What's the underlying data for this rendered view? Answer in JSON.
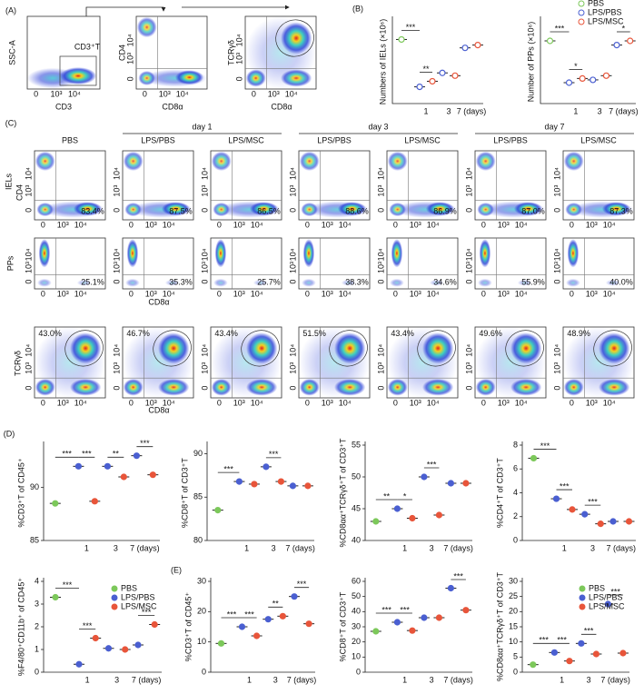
{
  "flow": {
    "panel_a": "(A)",
    "panel_c": "(C)",
    "ssc": "SSC-A",
    "cd3": "CD3",
    "gate": "CD3⁺T",
    "cd4": "CD4",
    "cd8": "CD8α",
    "tcr": "TCRγδ",
    "ticks": [
      "0",
      "10³",
      "10⁴"
    ],
    "days": [
      "day 1",
      "day 3",
      "day 7"
    ],
    "groups": [
      "PBS",
      "LPS/PBS",
      "LPS/MSC",
      "LPS/PBS",
      "LPS/MSC",
      "LPS/PBS",
      "LPS/MSC"
    ],
    "rows": [
      "IELs",
      "PPs"
    ],
    "iel_pct": [
      "83.4%",
      "87.5%",
      "86.5%",
      "88.6%",
      "86.9%",
      "87.0%",
      "87.3%"
    ],
    "pp_pct": [
      "25.1%",
      "35.3%",
      "25.7%",
      "38.3%",
      "34.6%",
      "55.9%",
      "40.0%"
    ],
    "tcr_pct": [
      "43.0%",
      "46.7%",
      "43.4%",
      "51.5%",
      "43.4%",
      "49.6%",
      "48.9%"
    ]
  },
  "chart_data": [
    {
      "type": "dot",
      "panel": "(B)",
      "ylabel": "Numbers of IELs (×10⁶)",
      "marker": "open",
      "categories": [
        null,
        "1",
        "3",
        "7 (days)"
      ],
      "ylim": [
        0,
        15
      ],
      "series": [
        {
          "name": "PBS",
          "color": "#7cc85a",
          "values": [
            11.5,
            null,
            null,
            null
          ]
        },
        {
          "name": "LPS/PBS",
          "color": "#4a5fd1",
          "values": [
            null,
            3,
            5.5,
            10
          ]
        },
        {
          "name": "LPS/MSC",
          "color": "#e8553a",
          "values": [
            null,
            4,
            5,
            10.5
          ]
        }
      ],
      "annotations": [
        "***",
        "**"
      ]
    },
    {
      "type": "dot",
      "ylabel": "Number of PPs (×10⁶)",
      "marker": "open",
      "legend": "upper right",
      "categories": [
        null,
        "1",
        "3",
        "7 (days)"
      ],
      "ylim": [
        0,
        6
      ],
      "series": [
        {
          "name": "PBS",
          "color": "#7cc85a",
          "values": [
            4.5,
            null,
            null,
            null
          ]
        },
        {
          "name": "LPS/PBS",
          "color": "#4a5fd1",
          "values": [
            null,
            1.5,
            1.7,
            4.2
          ]
        },
        {
          "name": "LPS/MSC",
          "color": "#e8553a",
          "values": [
            null,
            1.8,
            2,
            4.5
          ]
        }
      ],
      "annotations": [
        "***",
        "*",
        "*"
      ]
    },
    {
      "type": "dot",
      "panel": "(D)",
      "ylabel": "%CD3⁺T of CD45⁺",
      "marker": "filled",
      "categories": [
        null,
        "1",
        "3",
        "7 (days)"
      ],
      "ylim": [
        85,
        94
      ],
      "yticks": [
        85,
        90
      ],
      "series": [
        {
          "name": "PBS",
          "color": "#7cc85a",
          "values": [
            88.5,
            null,
            null,
            null
          ]
        },
        {
          "name": "LPS/PBS",
          "color": "#4a5fd1",
          "values": [
            null,
            92,
            92,
            93
          ]
        },
        {
          "name": "LPS/MSC",
          "color": "#e8553a",
          "values": [
            null,
            88.7,
            91,
            91.2
          ]
        }
      ],
      "annotations": [
        "***",
        "***",
        "**",
        "***"
      ]
    },
    {
      "type": "dot",
      "ylabel": "%CD8⁺T of CD3⁺T",
      "marker": "filled",
      "categories": [
        null,
        "1",
        "3",
        "7 (days)"
      ],
      "ylim": [
        80,
        91
      ],
      "yticks": [
        80,
        85,
        90
      ],
      "series": [
        {
          "name": "PBS",
          "color": "#7cc85a",
          "values": [
            83.5,
            null,
            null,
            null
          ]
        },
        {
          "name": "LPS/PBS",
          "color": "#4a5fd1",
          "values": [
            null,
            86.8,
            88.5,
            86.3
          ]
        },
        {
          "name": "LPS/MSC",
          "color": "#e8553a",
          "values": [
            null,
            86.5,
            86.8,
            86.3
          ]
        }
      ],
      "annotations": [
        "***",
        "***"
      ]
    },
    {
      "type": "dot",
      "ylabel": "%CD8αα⁺TCRγδ⁺T of CD3⁺T",
      "marker": "filled",
      "categories": [
        null,
        "1",
        "3",
        "7 (days)"
      ],
      "ylim": [
        40,
        55
      ],
      "yticks": [
        40,
        45,
        50,
        55
      ],
      "series": [
        {
          "name": "PBS",
          "color": "#7cc85a",
          "values": [
            43,
            null,
            null,
            null
          ]
        },
        {
          "name": "LPS/PBS",
          "color": "#4a5fd1",
          "values": [
            null,
            45,
            50,
            49
          ]
        },
        {
          "name": "LPS/MSC",
          "color": "#e8553a",
          "values": [
            null,
            43.5,
            44,
            49
          ]
        }
      ],
      "annotations": [
        "**",
        "*",
        "***"
      ]
    },
    {
      "type": "dot",
      "ylabel": "%CD4⁺T of CD3⁺T",
      "marker": "filled",
      "categories": [
        null,
        "1",
        "3",
        "7 (days)"
      ],
      "ylim": [
        0,
        8
      ],
      "yticks": [
        0,
        2,
        4,
        6,
        8
      ],
      "series": [
        {
          "name": "PBS",
          "color": "#7cc85a",
          "values": [
            6.9,
            null,
            null,
            null
          ]
        },
        {
          "name": "LPS/PBS",
          "color": "#4a5fd1",
          "values": [
            null,
            3.5,
            2.2,
            1.6
          ]
        },
        {
          "name": "LPS/MSC",
          "color": "#e8553a",
          "values": [
            null,
            2.6,
            1.4,
            1.6
          ]
        }
      ],
      "annotations": [
        "***",
        "***",
        "***"
      ]
    },
    {
      "type": "dot",
      "ylabel": "%F4/80⁺CD11b⁺ of CD45⁺",
      "marker": "filled",
      "legend": "upper right",
      "categories": [
        null,
        "1",
        "3",
        "7 (days)"
      ],
      "ylim": [
        0,
        4
      ],
      "yticks": [
        0,
        1,
        2,
        3,
        4
      ],
      "series": [
        {
          "name": "PBS",
          "color": "#7cc85a",
          "values": [
            3.3,
            null,
            null,
            null
          ]
        },
        {
          "name": "LPS/PBS",
          "color": "#4a5fd1",
          "values": [
            null,
            0.35,
            1.05,
            1.2
          ]
        },
        {
          "name": "LPS/MSC",
          "color": "#e8553a",
          "values": [
            null,
            1.5,
            1,
            2.1
          ]
        }
      ],
      "annotations": [
        "***",
        "***",
        "***"
      ]
    },
    {
      "type": "dot",
      "panel": "(E)",
      "ylabel": "%CD3⁺T of CD45⁺",
      "marker": "filled",
      "categories": [
        null,
        "1",
        "3",
        "7 (days)"
      ],
      "ylim": [
        0,
        30
      ],
      "yticks": [
        0,
        10,
        20,
        30
      ],
      "series": [
        {
          "name": "PBS",
          "color": "#7cc85a",
          "values": [
            9.5,
            null,
            null,
            null
          ]
        },
        {
          "name": "LPS/PBS",
          "color": "#4a5fd1",
          "values": [
            null,
            15,
            17.5,
            25
          ]
        },
        {
          "name": "LPS/MSC",
          "color": "#e8553a",
          "values": [
            null,
            12,
            18.5,
            16
          ]
        }
      ],
      "annotations": [
        "***",
        "***",
        "**",
        "***"
      ]
    },
    {
      "type": "dot",
      "ylabel": "%CD8⁺T of CD3⁺T",
      "marker": "filled",
      "categories": [
        null,
        "1",
        "3",
        "7 (days)"
      ],
      "ylim": [
        0,
        60
      ],
      "yticks": [
        0,
        10,
        20,
        30,
        40,
        50,
        60
      ],
      "series": [
        {
          "name": "PBS",
          "color": "#7cc85a",
          "values": [
            27,
            null,
            null,
            null
          ]
        },
        {
          "name": "LPS/PBS",
          "color": "#4a5fd1",
          "values": [
            null,
            33,
            36,
            55.5
          ]
        },
        {
          "name": "LPS/MSC",
          "color": "#e8553a",
          "values": [
            null,
            27.5,
            36,
            41
          ]
        }
      ],
      "annotations": [
        "***",
        "***",
        "***"
      ]
    },
    {
      "type": "dot",
      "ylabel": "%CD8αα⁺TCRγδ⁺T of CD3⁺T",
      "marker": "filled",
      "legend": "upper right",
      "categories": [
        null,
        "1",
        "3",
        "7 (days)"
      ],
      "ylim": [
        0,
        30
      ],
      "yticks": [
        0,
        5,
        10,
        15,
        20,
        25,
        30
      ],
      "series": [
        {
          "name": "PBS",
          "color": "#7cc85a",
          "values": [
            2.5,
            null,
            null,
            null
          ]
        },
        {
          "name": "LPS/PBS",
          "color": "#4a5fd1",
          "values": [
            null,
            6.5,
            9.5,
            22.5
          ]
        },
        {
          "name": "LPS/MSC",
          "color": "#e8553a",
          "values": [
            null,
            3.7,
            6,
            6.3
          ]
        }
      ],
      "annotations": [
        "***",
        "***",
        "***",
        "***"
      ]
    }
  ]
}
